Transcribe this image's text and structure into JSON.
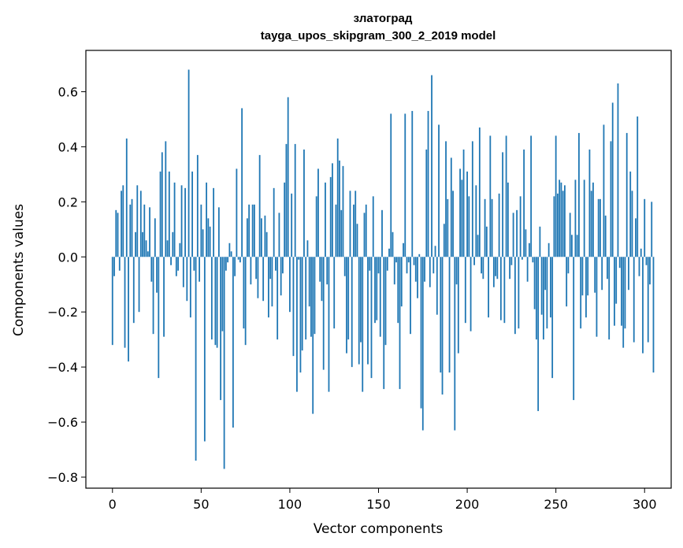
{
  "chart_data": {
    "type": "bar",
    "title": "златоград",
    "subtitle": "tayga_upos_skipgram_300_2_2019 model",
    "xlabel": "Vector components",
    "ylabel": "Components values",
    "xlim": [
      -15,
      315
    ],
    "ylim": [
      -0.84,
      0.75
    ],
    "xticks": [
      0,
      50,
      100,
      150,
      200,
      250,
      300
    ],
    "xtick_labels": [
      "0",
      "50",
      "100",
      "150",
      "200",
      "250",
      "300"
    ],
    "yticks": [
      -0.8,
      -0.6,
      -0.4,
      -0.2,
      0.0,
      0.2,
      0.4,
      0.6
    ],
    "ytick_labels": [
      "−0.8",
      "−0.6",
      "−0.4",
      "−0.2",
      "0.0",
      "0.2",
      "0.4",
      "0.6"
    ],
    "grid": false,
    "color": "#1f77b4",
    "values": [
      -0.32,
      -0.07,
      0.17,
      0.16,
      -0.05,
      0.24,
      0.26,
      -0.33,
      0.43,
      -0.38,
      0.19,
      0.21,
      -0.24,
      0.09,
      0.26,
      -0.2,
      0.24,
      0.09,
      0.19,
      0.06,
      0.02,
      0.18,
      -0.09,
      -0.28,
      0.14,
      -0.13,
      -0.44,
      0.31,
      0.38,
      -0.29,
      0.42,
      0.06,
      0.31,
      -0.03,
      0.09,
      0.27,
      -0.07,
      -0.05,
      0.05,
      0.26,
      -0.11,
      0.25,
      -0.16,
      0.68,
      -0.22,
      0.31,
      -0.05,
      -0.74,
      0.37,
      -0.09,
      0.19,
      0.1,
      -0.67,
      0.27,
      0.14,
      0.11,
      -0.3,
      0.25,
      -0.32,
      -0.33,
      0.18,
      -0.52,
      -0.27,
      -0.77,
      -0.05,
      -0.02,
      0.05,
      0.02,
      -0.62,
      -0.07,
      0.32,
      -0.01,
      -0.02,
      0.54,
      -0.26,
      -0.32,
      0.14,
      0.19,
      -0.1,
      0.19,
      0.19,
      -0.08,
      -0.15,
      0.37,
      0.14,
      -0.16,
      0.15,
      0.09,
      -0.22,
      -0.08,
      -0.18,
      0.25,
      -0.05,
      -0.3,
      0.16,
      -0.14,
      -0.06,
      0.27,
      0.41,
      0.58,
      -0.2,
      0.23,
      -0.36,
      0.41,
      -0.49,
      -0.01,
      -0.42,
      -0.34,
      0.39,
      -0.3,
      0.06,
      -0.18,
      -0.29,
      -0.57,
      -0.28,
      0.22,
      0.32,
      -0.09,
      -0.16,
      -0.41,
      0.27,
      -0.1,
      -0.49,
      0.29,
      0.34,
      -0.26,
      0.19,
      0.43,
      0.35,
      0.17,
      0.33,
      -0.07,
      -0.35,
      -0.3,
      0.24,
      -0.4,
      0.19,
      0.24,
      0.12,
      -0.39,
      -0.31,
      -0.49,
      0.16,
      0.19,
      -0.39,
      -0.05,
      -0.44,
      0.22,
      -0.24,
      -0.23,
      -0.06,
      -0.29,
      0.17,
      -0.48,
      -0.32,
      -0.05,
      0.03,
      0.52,
      0.09,
      -0.1,
      -0.02,
      -0.24,
      -0.48,
      -0.18,
      0.05,
      0.52,
      -0.06,
      -0.02,
      -0.28,
      0.53,
      -0.03,
      -0.09,
      -0.15,
      0.01,
      -0.55,
      -0.63,
      -0.09,
      0.39,
      0.53,
      -0.11,
      0.66,
      -0.06,
      0.04,
      -0.21,
      0.48,
      -0.42,
      -0.5,
      0.12,
      0.42,
      0.21,
      -0.42,
      0.36,
      0.24,
      -0.63,
      -0.1,
      -0.35,
      0.32,
      0.28,
      0.39,
      -0.24,
      0.31,
      0.22,
      -0.27,
      0.42,
      -0.03,
      0.26,
      0.08,
      0.47,
      -0.06,
      -0.08,
      0.21,
      0.11,
      -0.22,
      0.44,
      0.21,
      -0.11,
      -0.07,
      -0.08,
      0.23,
      -0.23,
      0.38,
      -0.24,
      0.44,
      0.27,
      -0.08,
      -0.03,
      0.16,
      -0.28,
      0.17,
      -0.26,
      0.22,
      -0.01,
      0.39,
      0.1,
      -0.09,
      0.05,
      0.44,
      -0.02,
      -0.19,
      -0.3,
      -0.56,
      0.11,
      -0.21,
      -0.3,
      -0.12,
      -0.26,
      0.05,
      -0.22,
      -0.44,
      0.22,
      0.44,
      0.23,
      0.28,
      0.27,
      0.24,
      0.26,
      -0.18,
      -0.06,
      0.16,
      0.08,
      -0.52,
      0.28,
      0.08,
      0.45,
      -0.26,
      -0.14,
      0.28,
      -0.22,
      -0.14,
      0.39,
      0.24,
      0.27,
      -0.13,
      -0.29,
      0.21,
      0.21,
      -0.12,
      0.48,
      0.15,
      -0.08,
      -0.3,
      0.42,
      0.56,
      -0.25,
      -0.17,
      0.63,
      -0.04,
      -0.25,
      -0.33,
      -0.26,
      0.45,
      -0.12,
      0.31,
      0.24,
      -0.31,
      0.14,
      0.51,
      -0.07,
      0.03,
      -0.35,
      0.21,
      -0.03,
      -0.31,
      -0.1,
      0.2,
      -0.42
    ]
  }
}
